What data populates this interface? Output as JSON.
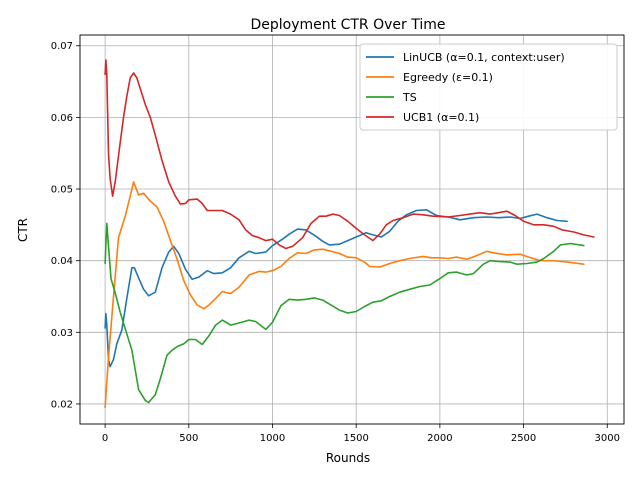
{
  "chart_data": {
    "type": "line",
    "title": "Deployment CTR Over Time",
    "xlabel": "Rounds",
    "ylabel": "CTR",
    "xlim": [
      -150,
      3100
    ],
    "ylim": [
      0.0172,
      0.0715
    ],
    "xticks": [
      0,
      500,
      1000,
      1500,
      2000,
      2500,
      3000
    ],
    "yticks": [
      0.02,
      0.03,
      0.04,
      0.05,
      0.06,
      0.07
    ],
    "ytick_labels": [
      "0.02",
      "0.03",
      "0.04",
      "0.05",
      "0.06",
      "0.07"
    ],
    "grid": true,
    "legend_position": "top-right",
    "series": [
      {
        "name": "LinUCB (α=0.1, context:user)",
        "color": "#1f77b4",
        "points": [
          [
            0,
            0.0306
          ],
          [
            5,
            0.0326
          ],
          [
            10,
            0.031
          ],
          [
            20,
            0.0262
          ],
          [
            30,
            0.0252
          ],
          [
            50,
            0.0262
          ],
          [
            70,
            0.0284
          ],
          [
            100,
            0.0303
          ],
          [
            130,
            0.0348
          ],
          [
            160,
            0.039
          ],
          [
            175,
            0.039
          ],
          [
            200,
            0.0376
          ],
          [
            230,
            0.036
          ],
          [
            260,
            0.0351
          ],
          [
            300,
            0.0356
          ],
          [
            340,
            0.039
          ],
          [
            380,
            0.0412
          ],
          [
            410,
            0.042
          ],
          [
            440,
            0.041
          ],
          [
            480,
            0.0388
          ],
          [
            520,
            0.0374
          ],
          [
            560,
            0.0377
          ],
          [
            610,
            0.0386
          ],
          [
            650,
            0.0382
          ],
          [
            700,
            0.0383
          ],
          [
            750,
            0.039
          ],
          [
            800,
            0.0404
          ],
          [
            860,
            0.0413
          ],
          [
            900,
            0.041
          ],
          [
            960,
            0.0412
          ],
          [
            1000,
            0.0421
          ],
          [
            1060,
            0.043
          ],
          [
            1100,
            0.0437
          ],
          [
            1150,
            0.0444
          ],
          [
            1200,
            0.0443
          ],
          [
            1260,
            0.0434
          ],
          [
            1300,
            0.0427
          ],
          [
            1340,
            0.0422
          ],
          [
            1400,
            0.0423
          ],
          [
            1450,
            0.0428
          ],
          [
            1500,
            0.0433
          ],
          [
            1560,
            0.0439
          ],
          [
            1600,
            0.0436
          ],
          [
            1650,
            0.0433
          ],
          [
            1700,
            0.0441
          ],
          [
            1750,
            0.0455
          ],
          [
            1800,
            0.0464
          ],
          [
            1860,
            0.047
          ],
          [
            1920,
            0.0471
          ],
          [
            1980,
            0.0463
          ],
          [
            2050,
            0.0461
          ],
          [
            2120,
            0.0457
          ],
          [
            2200,
            0.046
          ],
          [
            2280,
            0.0461
          ],
          [
            2350,
            0.046
          ],
          [
            2420,
            0.0461
          ],
          [
            2480,
            0.0459
          ],
          [
            2530,
            0.0462
          ],
          [
            2580,
            0.0465
          ],
          [
            2640,
            0.046
          ],
          [
            2700,
            0.0456
          ],
          [
            2760,
            0.0455
          ]
        ]
      },
      {
        "name": "Egreedy (ε=0.1)",
        "color": "#ff7f0e",
        "points": [
          [
            0,
            0.0195
          ],
          [
            20,
            0.0265
          ],
          [
            50,
            0.035
          ],
          [
            80,
            0.0432
          ],
          [
            120,
            0.0462
          ],
          [
            150,
            0.049
          ],
          [
            170,
            0.051
          ],
          [
            200,
            0.0492
          ],
          [
            230,
            0.0494
          ],
          [
            270,
            0.0483
          ],
          [
            310,
            0.0475
          ],
          [
            350,
            0.0455
          ],
          [
            390,
            0.0428
          ],
          [
            430,
            0.0402
          ],
          [
            470,
            0.0372
          ],
          [
            510,
            0.0352
          ],
          [
            550,
            0.0338
          ],
          [
            590,
            0.0333
          ],
          [
            620,
            0.0338
          ],
          [
            660,
            0.0347
          ],
          [
            700,
            0.0357
          ],
          [
            750,
            0.0354
          ],
          [
            800,
            0.0363
          ],
          [
            860,
            0.038
          ],
          [
            920,
            0.0385
          ],
          [
            960,
            0.0384
          ],
          [
            1000,
            0.0386
          ],
          [
            1050,
            0.0392
          ],
          [
            1100,
            0.0403
          ],
          [
            1150,
            0.0411
          ],
          [
            1200,
            0.041
          ],
          [
            1250,
            0.0415
          ],
          [
            1300,
            0.0416
          ],
          [
            1350,
            0.0413
          ],
          [
            1400,
            0.041
          ],
          [
            1450,
            0.0405
          ],
          [
            1500,
            0.0404
          ],
          [
            1550,
            0.0398
          ],
          [
            1580,
            0.0392
          ],
          [
            1640,
            0.0391
          ],
          [
            1700,
            0.0396
          ],
          [
            1760,
            0.04
          ],
          [
            1820,
            0.0403
          ],
          [
            1900,
            0.0406
          ],
          [
            1950,
            0.0404
          ],
          [
            2000,
            0.0404
          ],
          [
            2050,
            0.0403
          ],
          [
            2100,
            0.0405
          ],
          [
            2160,
            0.0402
          ],
          [
            2220,
            0.0407
          ],
          [
            2280,
            0.0413
          ],
          [
            2320,
            0.0411
          ],
          [
            2400,
            0.0408
          ],
          [
            2480,
            0.0409
          ],
          [
            2530,
            0.0405
          ],
          [
            2600,
            0.04
          ],
          [
            2680,
            0.04
          ],
          [
            2760,
            0.0398
          ],
          [
            2860,
            0.0395
          ]
        ]
      },
      {
        "name": "TS",
        "color": "#2ca02c",
        "points": [
          [
            0,
            0.0396
          ],
          [
            10,
            0.0452
          ],
          [
            20,
            0.042
          ],
          [
            35,
            0.0375
          ],
          [
            60,
            0.0355
          ],
          [
            90,
            0.0328
          ],
          [
            120,
            0.0305
          ],
          [
            160,
            0.0275
          ],
          [
            200,
            0.022
          ],
          [
            240,
            0.0205
          ],
          [
            260,
            0.0202
          ],
          [
            300,
            0.0213
          ],
          [
            330,
            0.0235
          ],
          [
            370,
            0.0268
          ],
          [
            400,
            0.0275
          ],
          [
            430,
            0.028
          ],
          [
            470,
            0.0284
          ],
          [
            500,
            0.029
          ],
          [
            540,
            0.029
          ],
          [
            580,
            0.0283
          ],
          [
            620,
            0.0295
          ],
          [
            660,
            0.031
          ],
          [
            700,
            0.0317
          ],
          [
            750,
            0.031
          ],
          [
            800,
            0.0313
          ],
          [
            860,
            0.0317
          ],
          [
            900,
            0.0315
          ],
          [
            960,
            0.0304
          ],
          [
            1000,
            0.0314
          ],
          [
            1050,
            0.0337
          ],
          [
            1100,
            0.0346
          ],
          [
            1150,
            0.0345
          ],
          [
            1200,
            0.0346
          ],
          [
            1250,
            0.0348
          ],
          [
            1300,
            0.0345
          ],
          [
            1350,
            0.0338
          ],
          [
            1400,
            0.0331
          ],
          [
            1450,
            0.0327
          ],
          [
            1500,
            0.0329
          ],
          [
            1550,
            0.0336
          ],
          [
            1600,
            0.0342
          ],
          [
            1650,
            0.0344
          ],
          [
            1700,
            0.035
          ],
          [
            1760,
            0.0356
          ],
          [
            1820,
            0.036
          ],
          [
            1880,
            0.0364
          ],
          [
            1940,
            0.0366
          ],
          [
            2000,
            0.0375
          ],
          [
            2050,
            0.0383
          ],
          [
            2100,
            0.0384
          ],
          [
            2160,
            0.038
          ],
          [
            2200,
            0.0382
          ],
          [
            2260,
            0.0395
          ],
          [
            2300,
            0.04
          ],
          [
            2350,
            0.0399
          ],
          [
            2420,
            0.0398
          ],
          [
            2460,
            0.0395
          ],
          [
            2520,
            0.0396
          ],
          [
            2580,
            0.0398
          ],
          [
            2620,
            0.0403
          ],
          [
            2680,
            0.0413
          ],
          [
            2720,
            0.0422
          ],
          [
            2780,
            0.0424
          ],
          [
            2860,
            0.0421
          ]
        ]
      },
      {
        "name": "UCB1 (α=0.1)",
        "color": "#d62728",
        "points": [
          [
            0,
            0.066
          ],
          [
            5,
            0.068
          ],
          [
            10,
            0.066
          ],
          [
            20,
            0.055
          ],
          [
            30,
            0.0515
          ],
          [
            45,
            0.049
          ],
          [
            60,
            0.051
          ],
          [
            90,
            0.0565
          ],
          [
            110,
            0.06
          ],
          [
            130,
            0.063
          ],
          [
            150,
            0.0655
          ],
          [
            170,
            0.0662
          ],
          [
            190,
            0.0655
          ],
          [
            210,
            0.064
          ],
          [
            240,
            0.0618
          ],
          [
            270,
            0.06
          ],
          [
            300,
            0.0575
          ],
          [
            340,
            0.054
          ],
          [
            380,
            0.051
          ],
          [
            420,
            0.049
          ],
          [
            450,
            0.0479
          ],
          [
            480,
            0.048
          ],
          [
            500,
            0.0485
          ],
          [
            550,
            0.0486
          ],
          [
            580,
            0.048
          ],
          [
            610,
            0.047
          ],
          [
            650,
            0.047
          ],
          [
            700,
            0.047
          ],
          [
            750,
            0.0465
          ],
          [
            800,
            0.0457
          ],
          [
            840,
            0.0443
          ],
          [
            880,
            0.0435
          ],
          [
            920,
            0.0432
          ],
          [
            960,
            0.0428
          ],
          [
            1000,
            0.043
          ],
          [
            1040,
            0.0422
          ],
          [
            1080,
            0.0417
          ],
          [
            1120,
            0.042
          ],
          [
            1180,
            0.0432
          ],
          [
            1230,
            0.0452
          ],
          [
            1280,
            0.0462
          ],
          [
            1320,
            0.0462
          ],
          [
            1360,
            0.0465
          ],
          [
            1400,
            0.0463
          ],
          [
            1450,
            0.0455
          ],
          [
            1500,
            0.0445
          ],
          [
            1550,
            0.0436
          ],
          [
            1600,
            0.0428
          ],
          [
            1640,
            0.0437
          ],
          [
            1680,
            0.045
          ],
          [
            1720,
            0.0456
          ],
          [
            1780,
            0.046
          ],
          [
            1840,
            0.0465
          ],
          [
            1900,
            0.0464
          ],
          [
            1960,
            0.0462
          ],
          [
            2050,
            0.0461
          ],
          [
            2120,
            0.0463
          ],
          [
            2180,
            0.0465
          ],
          [
            2240,
            0.0467
          ],
          [
            2300,
            0.0465
          ],
          [
            2350,
            0.0467
          ],
          [
            2400,
            0.0469
          ],
          [
            2450,
            0.0463
          ],
          [
            2500,
            0.0455
          ],
          [
            2560,
            0.045
          ],
          [
            2620,
            0.045
          ],
          [
            2680,
            0.0448
          ],
          [
            2730,
            0.0443
          ],
          [
            2800,
            0.044
          ],
          [
            2860,
            0.0436
          ],
          [
            2920,
            0.0433
          ]
        ]
      }
    ]
  }
}
